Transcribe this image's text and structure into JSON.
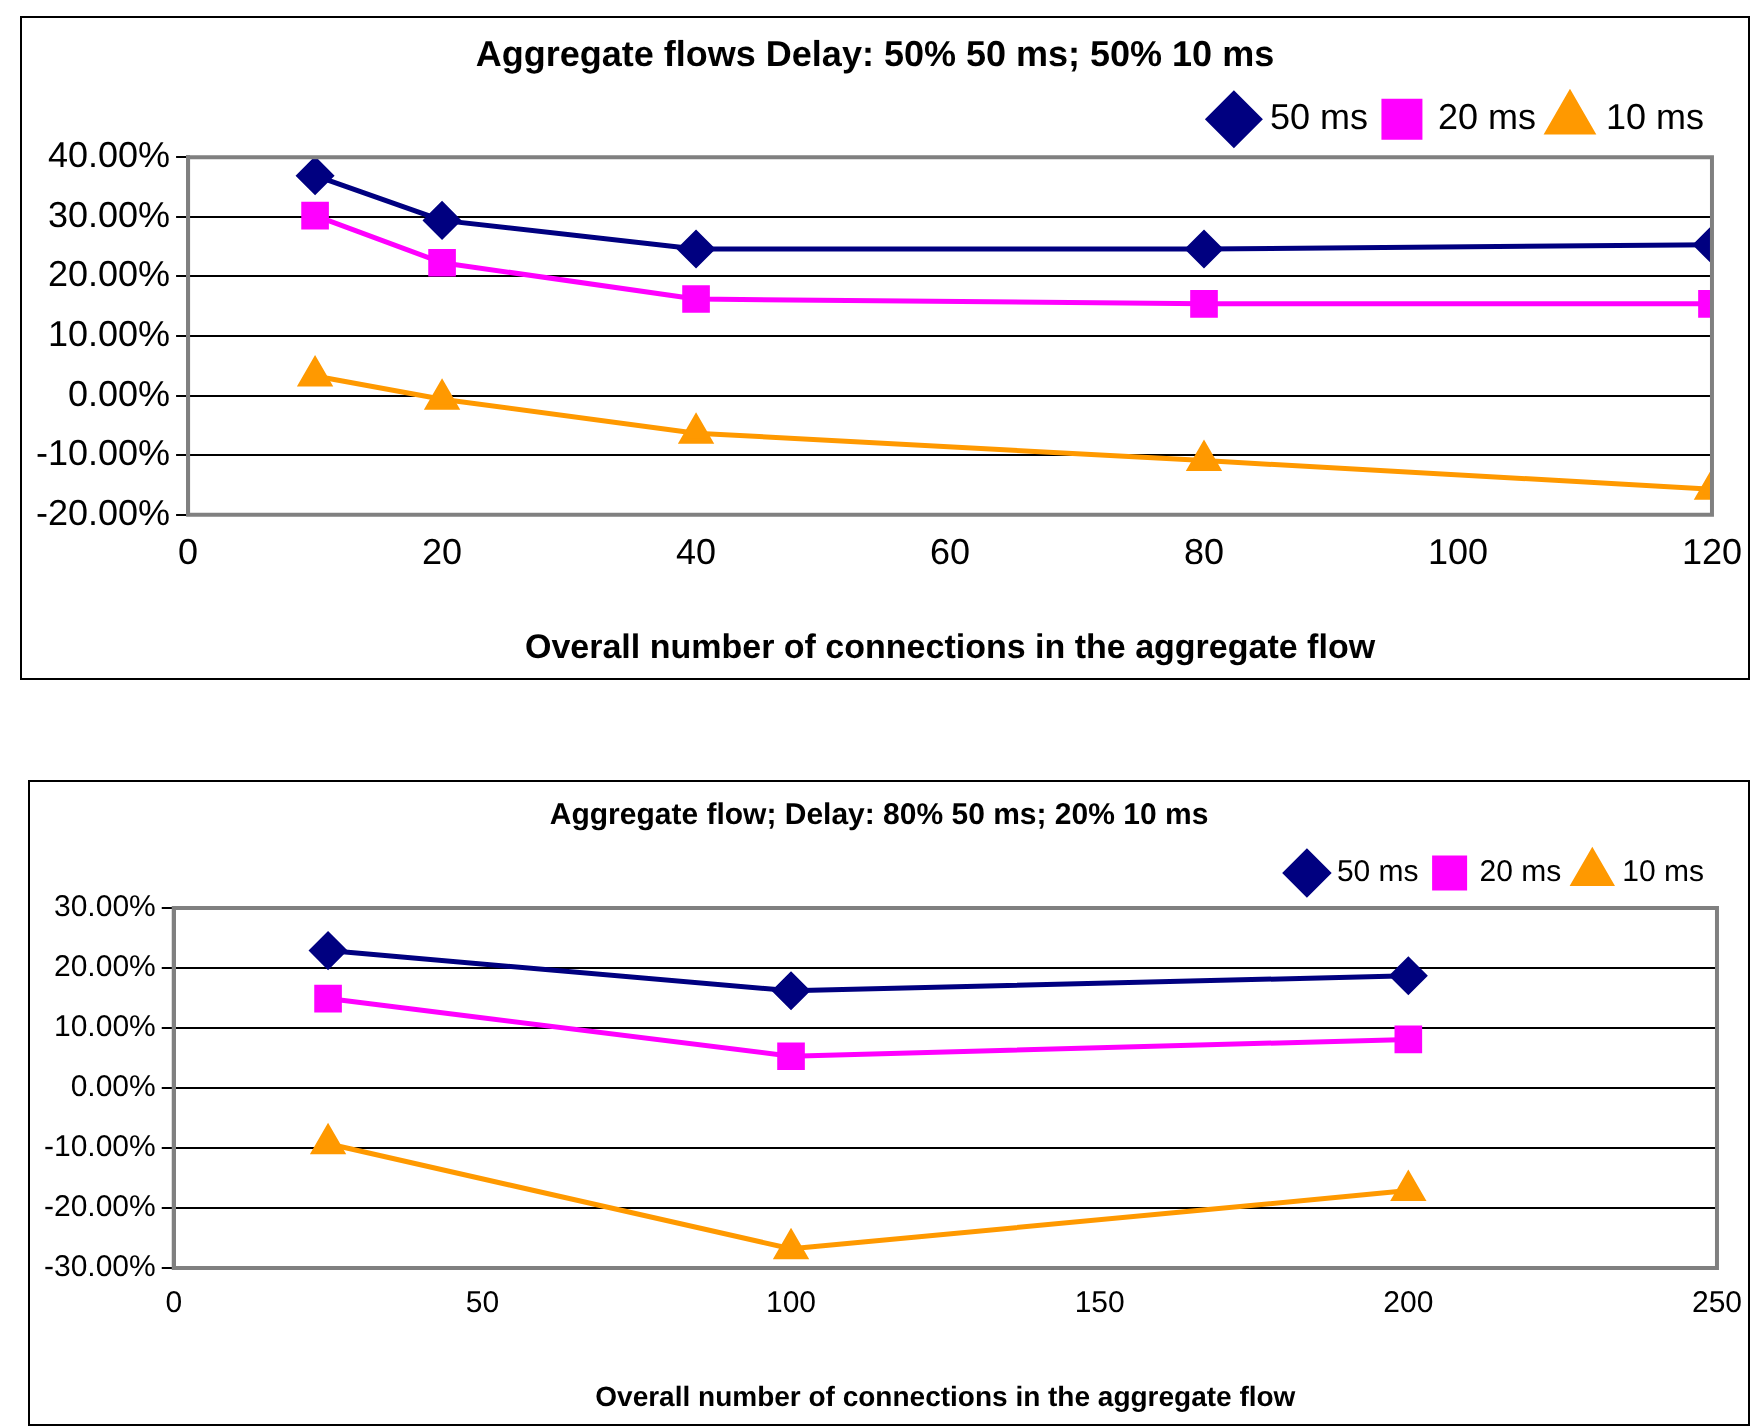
{
  "chart_data": [
    {
      "type": "line",
      "title": "Aggregate flows Delay: 50% 50 ms; 50% 10 ms",
      "xlabel": "Overall number of connections in the aggregate flow",
      "x": [
        10,
        20,
        40,
        80,
        120
      ],
      "xlim": [
        0,
        120
      ],
      "xticks": [
        0,
        20,
        40,
        60,
        80,
        100,
        120
      ],
      "ylim": [
        -20,
        40
      ],
      "yticks": [
        {
          "value": -20,
          "label": "-20.00%"
        },
        {
          "value": -10,
          "label": "-10.00%"
        },
        {
          "value": 0,
          "label": "0.00%"
        },
        {
          "value": 10,
          "label": "10.00%"
        },
        {
          "value": 20,
          "label": "20.00%"
        },
        {
          "value": 30,
          "label": "30.00%"
        },
        {
          "value": 40,
          "label": "40.00%"
        }
      ],
      "grid": "y",
      "legend": "top right",
      "series": [
        {
          "name": "50 ms",
          "color": "#000080",
          "marker": "diamond",
          "values": [
            36.9,
            29.4,
            24.6,
            24.6,
            25.3
          ]
        },
        {
          "name": "20 ms",
          "color": "#ff00ff",
          "marker": "square",
          "values": [
            30.2,
            22.3,
            16.2,
            15.4,
            15.4
          ]
        },
        {
          "name": "10 ms",
          "color": "#ff9900",
          "marker": "triangle",
          "values": [
            3.3,
            -0.6,
            -6.3,
            -10.9,
            -15.7
          ]
        }
      ]
    },
    {
      "type": "line",
      "title": "Aggregate flow; Delay: 80% 50 ms; 20% 10 ms",
      "xlabel": "Overall number of connections in the aggregate flow",
      "x": [
        25,
        100,
        200
      ],
      "xlim": [
        0,
        250
      ],
      "xticks": [
        0,
        50,
        100,
        150,
        200,
        250
      ],
      "ylim": [
        -30,
        30
      ],
      "yticks": [
        {
          "value": -30,
          "label": "-30.00%"
        },
        {
          "value": -20,
          "label": "-20.00%"
        },
        {
          "value": -10,
          "label": "-10.00%"
        },
        {
          "value": 0,
          "label": "0.00%"
        },
        {
          "value": 10,
          "label": "10.00%"
        },
        {
          "value": 20,
          "label": "20.00%"
        },
        {
          "value": 30,
          "label": "30.00%"
        }
      ],
      "grid": "y",
      "legend": "top right",
      "series": [
        {
          "name": "50 ms",
          "color": "#000080",
          "marker": "diamond",
          "values": [
            22.9,
            16.2,
            18.7
          ]
        },
        {
          "name": "20 ms",
          "color": "#ff00ff",
          "marker": "square",
          "values": [
            14.9,
            5.3,
            8.1
          ]
        },
        {
          "name": "10 ms",
          "color": "#ff9900",
          "marker": "triangle",
          "values": [
            -9.3,
            -26.8,
            -17.1
          ]
        }
      ]
    }
  ]
}
